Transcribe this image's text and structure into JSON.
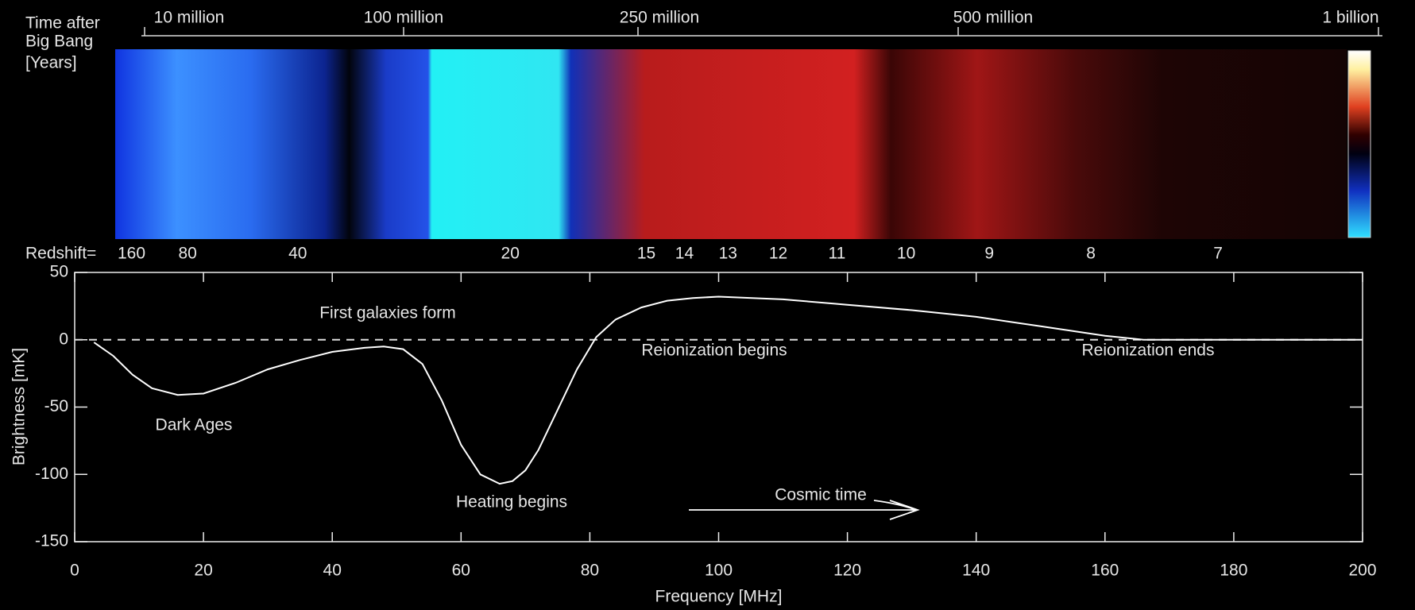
{
  "chart_data": {
    "type": "line",
    "x": [
      3,
      6,
      9,
      12,
      16,
      20,
      25,
      30,
      35,
      40,
      45,
      48,
      51,
      54,
      57,
      60,
      63,
      66,
      68,
      70,
      72,
      75,
      78,
      81,
      84,
      88,
      92,
      96,
      100,
      110,
      120,
      130,
      140,
      150,
      160,
      166,
      172,
      200
    ],
    "values": [
      -2,
      -12,
      -26,
      -36,
      -41,
      -40,
      -32,
      -22,
      -15,
      -9,
      -6,
      -5,
      -7,
      -18,
      -45,
      -78,
      -100,
      -107,
      -105,
      -97,
      -82,
      -52,
      -22,
      2,
      15,
      24,
      29,
      31,
      32,
      30,
      26,
      22,
      17,
      10,
      3,
      0,
      0,
      0
    ],
    "color": "#ffffff",
    "xlim": [
      0,
      200
    ],
    "ylim": [
      -150,
      50
    ],
    "xticks": [
      0,
      20,
      40,
      60,
      80,
      100,
      120,
      140,
      160,
      180,
      200
    ],
    "yticks": [
      -150,
      -100,
      -50,
      0,
      50
    ],
    "xlabel": "Frequency [MHz]",
    "ylabel": "Brightness [mK]",
    "annotations": [
      "First galaxies form",
      "Dark Ages",
      "Heating begins",
      "Reionization begins",
      "Reionization ends",
      "Cosmic time"
    ],
    "top_axis": {
      "title": [
        "Time after",
        "Big Bang",
        "[Years]"
      ],
      "labels": [
        "10 million",
        "100 million",
        "250 million",
        "500 million",
        "1 billion"
      ]
    },
    "redshift": {
      "label": "Redshift=",
      "ticks": [
        160,
        80,
        40,
        20,
        15,
        14,
        13,
        12,
        11,
        10,
        9,
        8,
        7
      ]
    }
  }
}
